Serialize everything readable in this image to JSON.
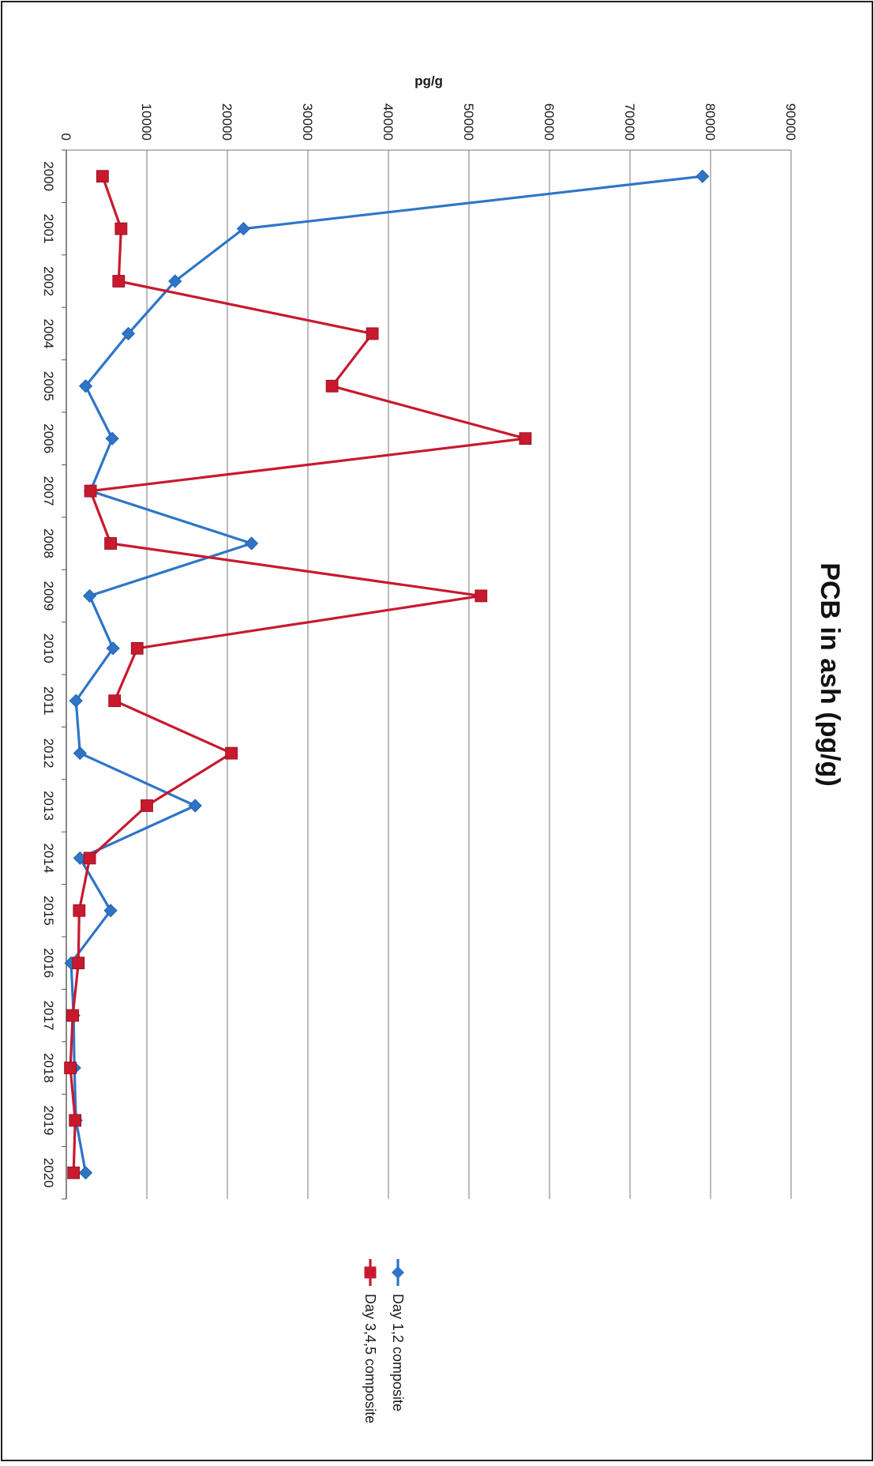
{
  "chart_data": {
    "type": "line",
    "title": "PCB in ash  (pg/g)",
    "xlabel": "",
    "ylabel": "pg/g",
    "orientation": "rotated 90° clockwise (page viewed landscape)",
    "categories": [
      "2000",
      "2001",
      "2002",
      "2004",
      "2005",
      "2006",
      "2007",
      "2008",
      "2009",
      "2010",
      "2011",
      "2012",
      "2013",
      "2014",
      "2015",
      "2016",
      "2017",
      "2018",
      "2019",
      "2020"
    ],
    "ylim": [
      0,
      90000
    ],
    "yticks": [
      "0",
      "10000",
      "20000",
      "30000",
      "40000",
      "50000",
      "60000",
      "70000",
      "80000",
      "90000"
    ],
    "grid": true,
    "legend_position": "bottom",
    "series": [
      {
        "name": "Day 1,2 composite",
        "color": "#2e75c8",
        "marker": "diamond",
        "values": [
          79000,
          22000,
          13500,
          7700,
          2400,
          5700,
          3000,
          23000,
          2900,
          5800,
          1200,
          1700,
          16000,
          1700,
          5500,
          600,
          900,
          1000,
          1200,
          2400
        ]
      },
      {
        "name": "Day 3,4,5 composite",
        "color": "#c8192e",
        "marker": "square",
        "values": [
          4500,
          6800,
          6500,
          38000,
          33000,
          57000,
          3000,
          5500,
          51500,
          8800,
          6000,
          20500,
          10000,
          2900,
          1600,
          1500,
          800,
          500,
          1100,
          900
        ]
      }
    ]
  }
}
